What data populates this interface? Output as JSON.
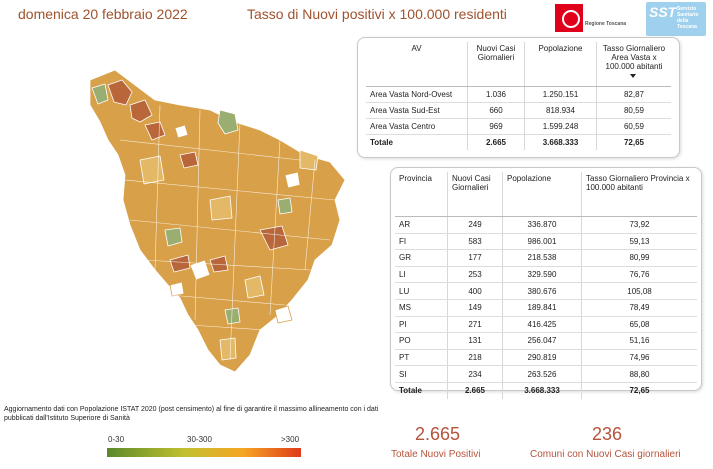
{
  "header": {
    "date": "domenica 20 febbraio 2022",
    "title": "Tasso di Nuovi positivi x 100.000 residenti",
    "logo_regione": "Regione Toscana",
    "logo_sst_big": "SST",
    "logo_sst_small": "Servizio Sanitario della Toscana"
  },
  "av_table": {
    "headers": [
      "AV",
      "Nuovi Casi Giornalieri",
      "Popolazione",
      "Tasso Giornaliero Area Vasta x 100.000 abitanti"
    ],
    "rows": [
      [
        "Area Vasta Nord-Ovest",
        "1.036",
        "1.250.151",
        "82,87"
      ],
      [
        "Area Vasta Sud-Est",
        "660",
        "818.934",
        "80,59"
      ],
      [
        "Area Vasta Centro",
        "969",
        "1.599.248",
        "60,59"
      ]
    ],
    "total": [
      "Totale",
      "2.665",
      "3.668.333",
      "72,65"
    ]
  },
  "prov_table": {
    "headers": [
      "Provincia",
      "Nuovi Casi Giornalieri",
      "Popolazione",
      "Tasso Giornaliero Provincia x 100.000 abitanti"
    ],
    "rows": [
      [
        "AR",
        "249",
        "336.870",
        "73,92"
      ],
      [
        "FI",
        "583",
        "986.001",
        "59,13"
      ],
      [
        "GR",
        "177",
        "218.538",
        "80,99"
      ],
      [
        "LI",
        "253",
        "329.590",
        "76,76"
      ],
      [
        "LU",
        "400",
        "380.676",
        "105,08"
      ],
      [
        "MS",
        "149",
        "189.841",
        "78,49"
      ],
      [
        "PI",
        "271",
        "416.425",
        "65,08"
      ],
      [
        "PO",
        "131",
        "256.047",
        "51,16"
      ],
      [
        "PT",
        "218",
        "290.819",
        "74,96"
      ],
      [
        "SI",
        "234",
        "263.526",
        "88,80"
      ]
    ],
    "total": [
      "Totale",
      "2.665",
      "3.668.333",
      "72,65"
    ]
  },
  "note": "Aggiornamento dati con Popolazione ISTAT 2020 (post censimento) al fine di garantire il massimo allineamento con i dati pubblicati dall'Istituto Superiore di Sanità",
  "legend": {
    "low": "0-30",
    "mid": "30-300",
    "high": ">300",
    "colors": [
      "#5a8a2a",
      "#c2c030",
      "#f5a623",
      "#e03a1a"
    ]
  },
  "kpi": {
    "total_positive_value": "2.665",
    "total_positive_label": "Totale Nuovi Positivi",
    "comuni_value": "236",
    "comuni_label": "Comuni con Nuovi Casi giornalieri"
  },
  "colors": {
    "title": "#a0522d",
    "kpi": "#b5533c",
    "map_fill_main": "#d9a04a",
    "map_fill_dark": "#b8663a",
    "map_fill_green": "#9aae72"
  }
}
